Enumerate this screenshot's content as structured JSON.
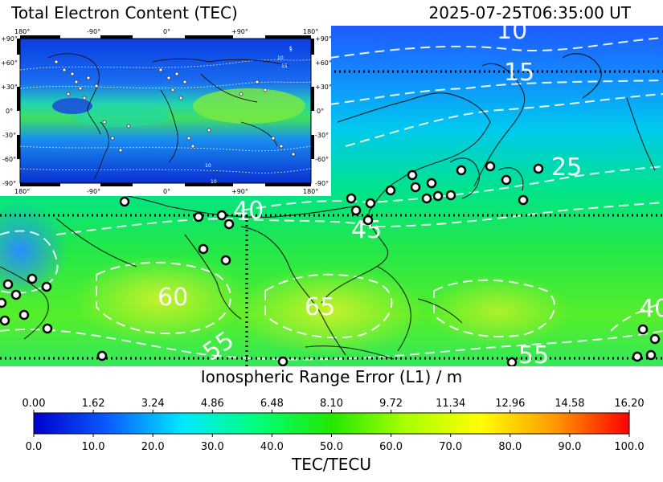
{
  "header": {
    "title": "Total Electron Content (TEC)",
    "timestamp": "2025-07-25T06:35:00 UT"
  },
  "inset": {
    "top_ticks": [
      "180°",
      "-90°",
      "0°",
      "+90°",
      "180°"
    ],
    "bottom_ticks": [
      "180°",
      "-90°",
      "0°",
      "+90°",
      "180°"
    ],
    "left_ticks": [
      "+90°",
      "+60°",
      "+30°",
      "0°",
      "-30°",
      "-60°",
      "-90°"
    ],
    "right_ticks": [
      "+90°",
      "+60°",
      "+30°",
      "0°",
      "-30°",
      "-60°",
      "-90°"
    ],
    "contour_labels": [
      "5",
      "10",
      "15",
      "10",
      "10",
      "5"
    ]
  },
  "map": {
    "contour_labels": [
      "10",
      "15",
      "25",
      "40",
      "45",
      "60",
      "65",
      "55",
      "40",
      "55"
    ],
    "colors": {
      "low": "#1a5cff",
      "mid": "#2ee06a",
      "high": "#b8f035",
      "contour": "#ffffff",
      "coast": "#111111"
    }
  },
  "scale": {
    "title": "Ionospheric Range Error (L1) / m",
    "top_ticks": [
      "0.00",
      "1.62",
      "3.24",
      "4.86",
      "6.48",
      "8.10",
      "9.72",
      "11.34",
      "12.96",
      "14.58",
      "16.20"
    ],
    "bottom_ticks": [
      "0.0",
      "10.0",
      "20.0",
      "30.0",
      "40.0",
      "50.0",
      "60.0",
      "70.0",
      "80.0",
      "90.0",
      "100.0"
    ],
    "axis_label": "TEC/TECU",
    "colors": [
      "#0000cc",
      "#0a5cff",
      "#00e8ff",
      "#00ff7a",
      "#22e800",
      "#aaff00",
      "#ffff00",
      "#ff9900",
      "#ff0000"
    ]
  }
}
